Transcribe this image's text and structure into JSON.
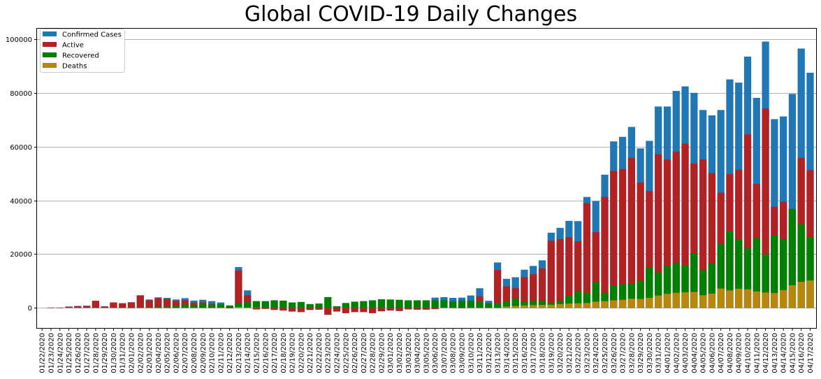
{
  "chart_data": {
    "type": "bar",
    "title": "Global COVID-19 Daily Changes",
    "xlabel": "",
    "ylabel": "",
    "ylim": [
      -7500,
      104000
    ],
    "yticks": [
      0,
      20000,
      40000,
      60000,
      80000,
      100000
    ],
    "grid": "horizontal",
    "legend_position": "top-left",
    "categories": [
      "01/22/2020",
      "01/23/2020",
      "01/24/2020",
      "01/25/2020",
      "01/26/2020",
      "01/27/2020",
      "01/28/2020",
      "01/29/2020",
      "01/30/2020",
      "01/31/2020",
      "02/01/2020",
      "02/02/2020",
      "02/03/2020",
      "02/04/2020",
      "02/05/2020",
      "02/06/2020",
      "02/07/2020",
      "02/08/2020",
      "02/09/2020",
      "02/10/2020",
      "02/11/2020",
      "02/12/2020",
      "02/13/2020",
      "02/14/2020",
      "02/15/2020",
      "02/16/2020",
      "02/17/2020",
      "02/18/2020",
      "02/19/2020",
      "02/20/2020",
      "02/21/2020",
      "02/22/2020",
      "02/23/2020",
      "02/24/2020",
      "02/25/2020",
      "02/26/2020",
      "02/27/2020",
      "02/28/2020",
      "02/29/2020",
      "03/01/2020",
      "03/02/2020",
      "03/03/2020",
      "03/04/2020",
      "03/05/2020",
      "03/06/2020",
      "03/07/2020",
      "03/08/2020",
      "03/09/2020",
      "03/10/2020",
      "03/11/2020",
      "03/12/2020",
      "03/13/2020",
      "03/14/2020",
      "03/15/2020",
      "03/16/2020",
      "03/17/2020",
      "03/18/2020",
      "03/19/2020",
      "03/20/2020",
      "03/21/2020",
      "03/22/2020",
      "03/23/2020",
      "03/24/2020",
      "03/25/2020",
      "03/26/2020",
      "03/27/2020",
      "03/28/2020",
      "03/29/2020",
      "03/30/2020",
      "03/31/2020",
      "04/01/2020",
      "04/02/2020",
      "04/03/2020",
      "04/04/2020",
      "04/05/2020",
      "04/06/2020",
      "04/07/2020",
      "04/08/2020",
      "04/09/2020",
      "04/10/2020",
      "04/11/2020",
      "04/12/2020",
      "04/13/2020",
      "04/14/2020",
      "04/15/2020",
      "04/16/2020",
      "04/17/2020"
    ],
    "series": [
      {
        "name": "Confirmed Cases",
        "color": "#1f77b4",
        "values": [
          0,
          100,
          100,
          500,
          700,
          800,
          2600,
          600,
          2000,
          1700,
          2100,
          4700,
          3100,
          3900,
          3700,
          3100,
          3600,
          2700,
          3000,
          2500,
          2000,
          400,
          15200,
          6500,
          2100,
          2000,
          2000,
          1800,
          600,
          500,
          600,
          1000,
          400,
          600,
          900,
          700,
          900,
          1300,
          1400,
          1700,
          1900,
          2300,
          2200,
          2300,
          3800,
          4000,
          3700,
          3800,
          4600,
          7300,
          2600,
          16900,
          10800,
          11400,
          14200,
          15600,
          17700,
          28000,
          29800,
          32400,
          32300,
          41300,
          39800,
          49600,
          62000,
          63700,
          67400,
          59400,
          62200,
          75000,
          75000,
          80800,
          82500,
          80100,
          73700,
          71700,
          73700,
          85100,
          83900,
          93600,
          78200,
          99200,
          70300,
          71300,
          79700,
          96600,
          87600
        ]
      },
      {
        "name": "Active",
        "color": "#b22222",
        "values": [
          0,
          100,
          100,
          400,
          600,
          700,
          2600,
          500,
          2000,
          1700,
          2000,
          4500,
          2800,
          3600,
          3300,
          2600,
          2800,
          1900,
          2000,
          1500,
          900,
          -200,
          13900,
          4700,
          -600,
          -400,
          -800,
          -1000,
          -1400,
          -1600,
          -800,
          -700,
          -2600,
          -1400,
          -2000,
          -1600,
          -1600,
          -2000,
          -1300,
          -1000,
          -1200,
          -600,
          -700,
          -700,
          -500,
          0,
          100,
          -100,
          2000,
          4300,
          800,
          14100,
          8000,
          7400,
          11400,
          12500,
          14700,
          25000,
          25600,
          26300,
          24800,
          39000,
          28200,
          41300,
          51000,
          51700,
          55900,
          46700,
          43500,
          57200,
          55300,
          58200,
          61200,
          53800,
          55300,
          50200,
          42900,
          49800,
          51400,
          64600,
          46200,
          74200,
          37700,
          39500,
          36900,
          55900,
          51300
        ]
      },
      {
        "name": "Recovered",
        "color": "#008000",
        "values": [
          0,
          0,
          0,
          0,
          0,
          0,
          0,
          0,
          0,
          0,
          100,
          200,
          300,
          500,
          500,
          800,
          1200,
          1100,
          1400,
          1300,
          1400,
          900,
          1700,
          2100,
          2500,
          2500,
          2800,
          2700,
          2000,
          2200,
          1400,
          1600,
          4000,
          600,
          1800,
          2300,
          2500,
          2800,
          3200,
          3100,
          3000,
          2800,
          2800,
          2800,
          2800,
          2800,
          2400,
          2700,
          2700,
          2200,
          1700,
          1800,
          2500,
          3500,
          2200,
          2700,
          2600,
          1900,
          2600,
          4500,
          6200,
          5600,
          9500,
          5500,
          8400,
          8800,
          8900,
          10100,
          15000,
          13200,
          15600,
          16800,
          15900,
          20300,
          14000,
          16700,
          23800,
          28500,
          25500,
          22200,
          25900,
          19900,
          26900,
          25500,
          36800,
          31100,
          26400
        ]
      },
      {
        "name": "Deaths",
        "color": "#b8860b",
        "values": [
          0,
          0,
          0,
          0,
          0,
          0,
          0,
          0,
          0,
          0,
          0,
          0,
          0,
          0,
          0,
          0,
          0,
          0,
          0,
          0,
          100,
          0,
          300,
          100,
          100,
          0,
          0,
          0,
          0,
          0,
          0,
          0,
          0,
          0,
          0,
          0,
          0,
          0,
          0,
          0,
          0,
          0,
          0,
          0,
          0,
          0,
          0,
          0,
          0,
          0,
          0,
          0,
          500,
          700,
          900,
          1000,
          1100,
          1100,
          1400,
          1600,
          1700,
          1800,
          2300,
          2500,
          2800,
          3000,
          3400,
          3300,
          3700,
          4600,
          5200,
          5600,
          5800,
          5900,
          4700,
          5300,
          7200,
          6500,
          7100,
          6900,
          6100,
          5700,
          5500,
          6600,
          8400,
          9700,
          10200
        ]
      }
    ]
  }
}
